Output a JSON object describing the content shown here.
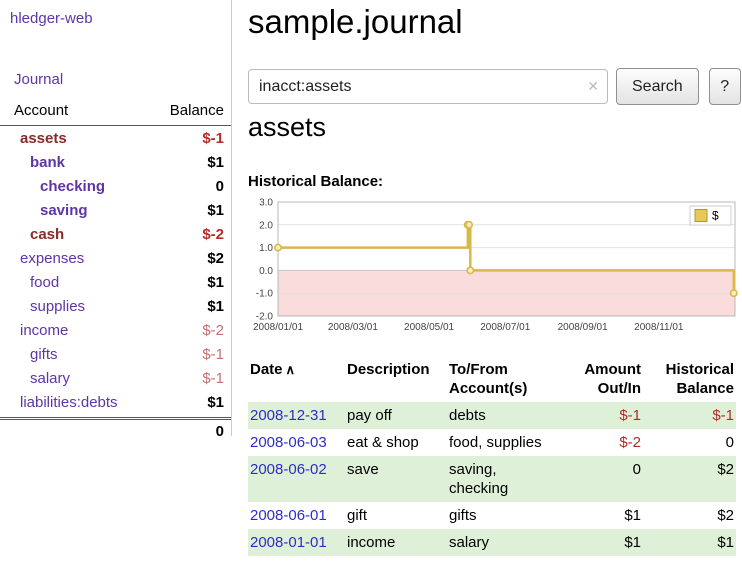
{
  "colors": {
    "link_purple": "#5f35a5",
    "account_current": "#8b2a2a",
    "negative_red": "#b52b27",
    "negative_soft": "#c27171",
    "row_green": "#dff0d8",
    "date_blue": "#2d2dc9",
    "chart_line_gold": "#d9b84a",
    "chart_negative_pink": "#fadcdc"
  },
  "sidebar": {
    "title": "hledger-web",
    "journal_link": "Journal",
    "account_header": "Account",
    "balance_header": "Balance",
    "accounts": [
      {
        "name": "assets",
        "balance": "$-1",
        "indent": 1,
        "name_style": "maroon",
        "balance_style": "neg"
      },
      {
        "name": "bank",
        "balance": "$1",
        "indent": 2,
        "name_style": "purple-bold",
        "balance_style": "pos"
      },
      {
        "name": "checking",
        "balance": "0",
        "indent": 3,
        "name_style": "purple-bold",
        "balance_style": "pos"
      },
      {
        "name": "saving",
        "balance": "$1",
        "indent": 3,
        "name_style": "purple-bold",
        "balance_style": "pos"
      },
      {
        "name": "cash",
        "balance": "$-2",
        "indent": 2,
        "name_style": "maroon",
        "balance_style": "neg"
      },
      {
        "name": "expenses",
        "balance": "$2",
        "indent": 1,
        "name_style": "purple",
        "balance_style": "pos"
      },
      {
        "name": "food",
        "balance": "$1",
        "indent": 2,
        "name_style": "purple",
        "balance_style": "pos"
      },
      {
        "name": "supplies",
        "balance": "$1",
        "indent": 2,
        "name_style": "purple",
        "balance_style": "pos"
      },
      {
        "name": "income",
        "balance": "$-2",
        "indent": 1,
        "name_style": "purple",
        "balance_style": "negsoft"
      },
      {
        "name": "gifts",
        "balance": "$-1",
        "indent": 2,
        "name_style": "purple",
        "balance_style": "negsoft"
      },
      {
        "name": "salary",
        "balance": "$-1",
        "indent": 2,
        "name_style": "purple",
        "balance_style": "negsoft"
      },
      {
        "name": "liabilities:debts",
        "balance": "$1",
        "indent": 1,
        "name_style": "purple",
        "balance_style": "pos"
      }
    ],
    "total": "0"
  },
  "main": {
    "title": "sample.journal",
    "search": {
      "value": "inacct:assets",
      "clear_icon": "✕",
      "button_label": "Search",
      "help_label": "?"
    },
    "account_heading": "assets",
    "chart_heading": "Historical Balance:"
  },
  "chart_data": {
    "type": "line",
    "step": true,
    "title": "Historical Balance",
    "legend": [
      {
        "label": "$",
        "color": "#e9c857"
      }
    ],
    "x_start": "2008-01-01",
    "x_end": "2009-01-01",
    "ylim": [
      -2,
      3
    ],
    "yticks": [
      "3.0",
      "2.0",
      "1.0",
      "0.0",
      "-1.0",
      "-2.0"
    ],
    "xticks": [
      {
        "label": "2008/01/01",
        "date": "2008-01-01"
      },
      {
        "label": "2008/03/01",
        "date": "2008-03-01"
      },
      {
        "label": "2008/05/01",
        "date": "2008-05-01"
      },
      {
        "label": "2008/07/01",
        "date": "2008-07-01"
      },
      {
        "label": "2008/09/01",
        "date": "2008-09-01"
      },
      {
        "label": "2008/11/01",
        "date": "2008-11-01"
      }
    ],
    "series": [
      {
        "name": "$",
        "color": "#d9b84a",
        "points": [
          {
            "date": "2008-01-01",
            "value": 1
          },
          {
            "date": "2008-06-01",
            "value": 2
          },
          {
            "date": "2008-06-02",
            "value": 2
          },
          {
            "date": "2008-06-03",
            "value": 0
          },
          {
            "date": "2008-12-31",
            "value": -1
          }
        ]
      }
    ],
    "negative_fill": "#fadcdc",
    "grid": true,
    "legend_position": "top-right"
  },
  "transactions": {
    "headers": {
      "date": "Date",
      "date_sort_icon": "∧",
      "description": "Description",
      "accounts_line1": "To/From",
      "accounts_line2": "Account(s)",
      "amount_line1": "Amount",
      "amount_line2": "Out/In",
      "balance_line1": "Historical",
      "balance_line2": "Balance"
    },
    "rows": [
      {
        "date": "2008-12-31",
        "description": "pay off",
        "accounts": "debts",
        "amount": "$-1",
        "amount_negative": true,
        "balance": "$-1",
        "balance_negative": true
      },
      {
        "date": "2008-06-03",
        "description": "eat & shop",
        "accounts": "food, supplies",
        "amount": "$-2",
        "amount_negative": true,
        "balance": "0",
        "balance_negative": false
      },
      {
        "date": "2008-06-02",
        "description": "save",
        "accounts": "saving, checking",
        "amount": "0",
        "amount_negative": false,
        "balance": "$2",
        "balance_negative": false
      },
      {
        "date": "2008-06-01",
        "description": "gift",
        "accounts": "gifts",
        "amount": "$1",
        "amount_negative": false,
        "balance": "$2",
        "balance_negative": false
      },
      {
        "date": "2008-01-01",
        "description": "income",
        "accounts": "salary",
        "amount": "$1",
        "amount_negative": false,
        "balance": "$1",
        "balance_negative": false
      }
    ]
  }
}
